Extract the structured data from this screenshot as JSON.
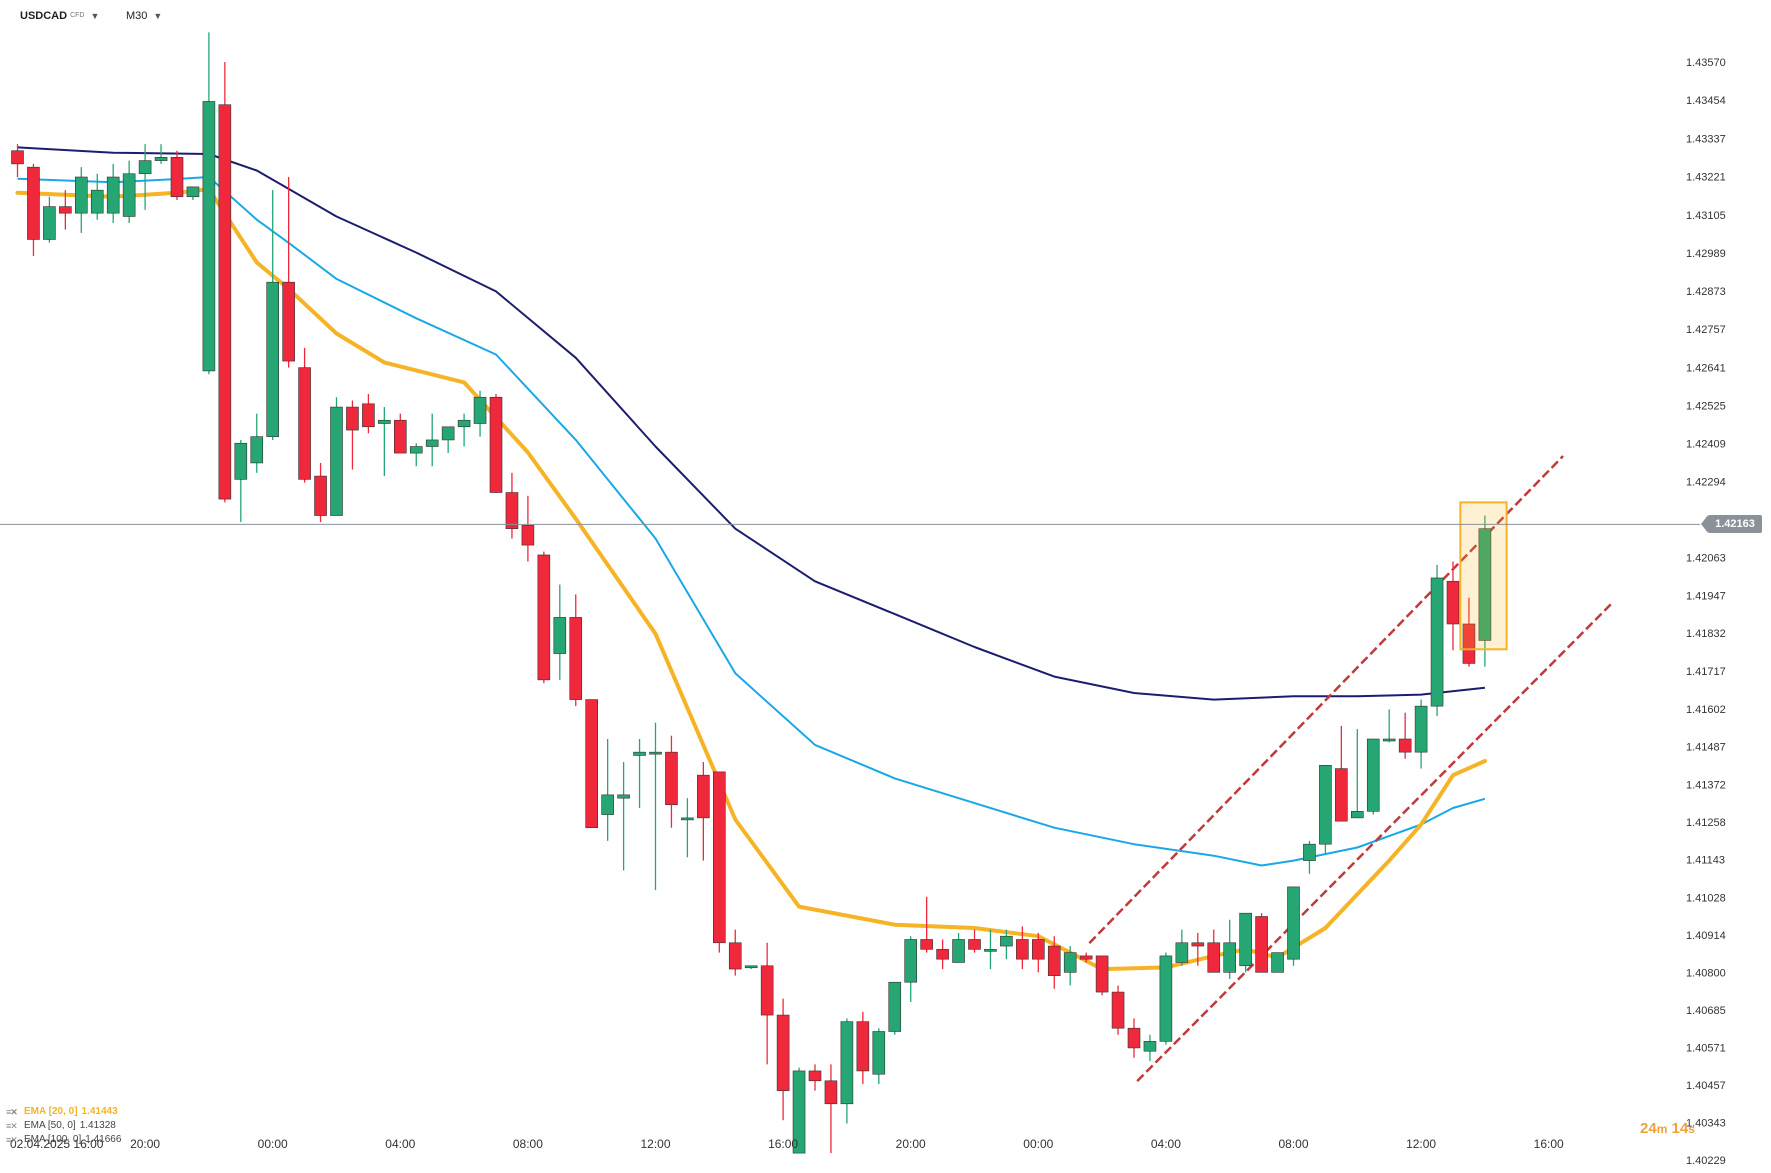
{
  "header": {
    "symbol": "USDCAD",
    "symbol_type": "CFD",
    "timeframe": "M30"
  },
  "current_price": "1.42163",
  "countdown": {
    "minutes": "24",
    "minutes_unit": "m",
    "seconds": "14",
    "seconds_unit": "s"
  },
  "legend": [
    {
      "label": "EMA [20, 0]",
      "value": "1.41443",
      "color": "#f5b325"
    },
    {
      "label": "EMA [50, 0]",
      "value": "1.41328",
      "color": "#444444"
    },
    {
      "label": "EMA [100, 0]",
      "value": "1.41666",
      "color": "#444444"
    }
  ],
  "colors": {
    "up": "#26a672",
    "down": "#f0283c",
    "ema20": "#f5b325",
    "ema50": "#1aa7e8",
    "ema100": "#1b1d6e",
    "channel": "#c0393b",
    "price_line": "#8a9199",
    "highlight": "#f5b325"
  },
  "chart_data": {
    "type": "candlestick",
    "title": "",
    "interval": "M30",
    "x_ticks": [
      "02.04.2025  16:00",
      "20:00",
      "00:00",
      "04:00",
      "08:00",
      "12:00",
      "16:00",
      "20:00",
      "00:00",
      "04:00",
      "08:00",
      "12:00",
      "16:00"
    ],
    "y_ticks": [
      "1.43570",
      "1.43454",
      "1.43337",
      "1.43221",
      "1.43105",
      "1.42989",
      "1.42873",
      "1.42757",
      "1.42641",
      "1.42525",
      "1.42409",
      "1.42294",
      "1.42063",
      "1.41947",
      "1.41832",
      "1.41717",
      "1.41602",
      "1.41487",
      "1.41372",
      "1.41258",
      "1.41143",
      "1.41028",
      "1.40914",
      "1.40800",
      "1.40685",
      "1.40571",
      "1.40457",
      "1.40343",
      "1.40229"
    ],
    "ylim": [
      1.402,
      1.4362
    ],
    "candles_ohlc": [
      [
        1.433,
        1.4332,
        1.4322,
        1.4326
      ],
      [
        1.4325,
        1.4326,
        1.4298,
        1.4303
      ],
      [
        1.4303,
        1.4316,
        1.4302,
        1.4313
      ],
      [
        1.4313,
        1.4318,
        1.4306,
        1.4311
      ],
      [
        1.4311,
        1.4325,
        1.4305,
        1.4322
      ],
      [
        1.4311,
        1.4323,
        1.4309,
        1.4318
      ],
      [
        1.4311,
        1.4326,
        1.4308,
        1.4322
      ],
      [
        1.431,
        1.4327,
        1.4308,
        1.4323
      ],
      [
        1.4323,
        1.4332,
        1.4312,
        1.4327
      ],
      [
        1.4327,
        1.4332,
        1.4326,
        1.4328
      ],
      [
        1.4328,
        1.433,
        1.4315,
        1.4316
      ],
      [
        1.4316,
        1.4319,
        1.4315,
        1.4319
      ],
      [
        1.4263,
        1.4366,
        1.4262,
        1.4345
      ],
      [
        1.4344,
        1.4357,
        1.4223,
        1.4224
      ],
      [
        1.423,
        1.4242,
        1.4217,
        1.4241
      ],
      [
        1.4235,
        1.425,
        1.4232,
        1.4243
      ],
      [
        1.4243,
        1.4318,
        1.4242,
        1.429
      ],
      [
        1.429,
        1.4322,
        1.4264,
        1.4266
      ],
      [
        1.4264,
        1.427,
        1.4229,
        1.423
      ],
      [
        1.4231,
        1.4235,
        1.4217,
        1.4219
      ],
      [
        1.4219,
        1.4255,
        1.4219,
        1.4252
      ],
      [
        1.4252,
        1.4254,
        1.4233,
        1.4245
      ],
      [
        1.4253,
        1.4256,
        1.4244,
        1.4246
      ],
      [
        1.4247,
        1.4252,
        1.4231,
        1.4248
      ],
      [
        1.4248,
        1.425,
        1.4238,
        1.4238
      ],
      [
        1.4238,
        1.4241,
        1.4234,
        1.424
      ],
      [
        1.424,
        1.425,
        1.4234,
        1.4242
      ],
      [
        1.4242,
        1.4246,
        1.4238,
        1.4246
      ],
      [
        1.4246,
        1.425,
        1.424,
        1.4248
      ],
      [
        1.4247,
        1.4257,
        1.4243,
        1.4255
      ],
      [
        1.4255,
        1.4256,
        1.4226,
        1.4226
      ],
      [
        1.4226,
        1.4232,
        1.4212,
        1.4215
      ],
      [
        1.4216,
        1.4225,
        1.4205,
        1.421
      ],
      [
        1.4207,
        1.4208,
        1.4168,
        1.4169
      ],
      [
        1.4177,
        1.4198,
        1.4169,
        1.4188
      ],
      [
        1.4188,
        1.4195,
        1.4161,
        1.4163
      ],
      [
        1.4163,
        1.4163,
        1.4124,
        1.4124
      ],
      [
        1.4128,
        1.4151,
        1.412,
        1.4134
      ],
      [
        1.4133,
        1.4144,
        1.4111,
        1.4134
      ],
      [
        1.4146,
        1.4151,
        1.413,
        1.4147
      ],
      [
        1.4147,
        1.4156,
        1.4105,
        1.4147
      ],
      [
        1.4147,
        1.4152,
        1.4124,
        1.4131
      ],
      [
        1.4127,
        1.4133,
        1.4115,
        1.4127
      ],
      [
        1.414,
        1.4144,
        1.4114,
        1.4127
      ],
      [
        1.4141,
        1.4141,
        1.4086,
        1.4089
      ],
      [
        1.4089,
        1.4093,
        1.4079,
        1.4081
      ],
      [
        1.4082,
        1.4082,
        1.4081,
        1.4082
      ],
      [
        1.4082,
        1.4089,
        1.4052,
        1.4067
      ],
      [
        1.4067,
        1.4072,
        1.4035,
        1.4044
      ],
      [
        1.4025,
        1.4051,
        1.4025,
        1.405
      ],
      [
        1.405,
        1.4052,
        1.4044,
        1.4047
      ],
      [
        1.4047,
        1.4052,
        1.4025,
        1.404
      ],
      [
        1.404,
        1.4066,
        1.4034,
        1.4065
      ],
      [
        1.4065,
        1.4068,
        1.4046,
        1.405
      ],
      [
        1.4049,
        1.4063,
        1.4046,
        1.4062
      ],
      [
        1.4062,
        1.4077,
        1.4061,
        1.4077
      ],
      [
        1.4077,
        1.4091,
        1.4071,
        1.409
      ],
      [
        1.409,
        1.4103,
        1.4086,
        1.4087
      ],
      [
        1.4087,
        1.409,
        1.4081,
        1.4084
      ],
      [
        1.4083,
        1.4092,
        1.4083,
        1.409
      ],
      [
        1.409,
        1.4093,
        1.4086,
        1.4087
      ],
      [
        1.4087,
        1.4093,
        1.4081,
        1.4087
      ],
      [
        1.4088,
        1.4093,
        1.4084,
        1.4091
      ],
      [
        1.409,
        1.4094,
        1.4081,
        1.4084
      ],
      [
        1.409,
        1.4092,
        1.408,
        1.4084
      ],
      [
        1.4088,
        1.4091,
        1.4075,
        1.4079
      ],
      [
        1.408,
        1.4088,
        1.4076,
        1.4086
      ],
      [
        1.4085,
        1.4086,
        1.4083,
        1.4084
      ],
      [
        1.4085,
        1.4085,
        1.4073,
        1.4074
      ],
      [
        1.4074,
        1.4076,
        1.4061,
        1.4063
      ],
      [
        1.4063,
        1.4066,
        1.4054,
        1.4057
      ],
      [
        1.4056,
        1.4061,
        1.4053,
        1.4059
      ],
      [
        1.4059,
        1.4086,
        1.4058,
        1.4085
      ],
      [
        1.4083,
        1.4093,
        1.4082,
        1.4089
      ],
      [
        1.4089,
        1.4092,
        1.4082,
        1.4088
      ],
      [
        1.4089,
        1.4093,
        1.408,
        1.408
      ],
      [
        1.408,
        1.4096,
        1.4078,
        1.4089
      ],
      [
        1.4082,
        1.4098,
        1.408,
        1.4098
      ],
      [
        1.4097,
        1.4098,
        1.408,
        1.408
      ],
      [
        1.408,
        1.4086,
        1.408,
        1.4086
      ],
      [
        1.4084,
        1.4106,
        1.4082,
        1.4106
      ],
      [
        1.4114,
        1.412,
        1.411,
        1.4119
      ],
      [
        1.4119,
        1.4143,
        1.4116,
        1.4143
      ],
      [
        1.4142,
        1.4155,
        1.4126,
        1.4126
      ],
      [
        1.4127,
        1.4154,
        1.4127,
        1.4129
      ],
      [
        1.4129,
        1.4151,
        1.4128,
        1.4151
      ],
      [
        1.4151,
        1.416,
        1.415,
        1.4151
      ],
      [
        1.4151,
        1.4159,
        1.4145,
        1.4147
      ],
      [
        1.4147,
        1.4163,
        1.4142,
        1.4161
      ],
      [
        1.4161,
        1.4204,
        1.4158,
        1.42
      ],
      [
        1.4199,
        1.4205,
        1.4178,
        1.4186
      ],
      [
        1.4186,
        1.4194,
        1.4173,
        1.4174
      ],
      [
        1.4181,
        1.4219,
        1.4173,
        1.4215
      ]
    ],
    "ema20": [
      [
        0,
        1.43172
      ],
      [
        6,
        1.4316
      ],
      [
        10,
        1.43172
      ],
      [
        12,
        1.43183
      ],
      [
        15,
        1.4296
      ],
      [
        17,
        1.4288
      ],
      [
        20,
        1.42744
      ],
      [
        23,
        1.42656
      ],
      [
        28,
        1.42595
      ],
      [
        32,
        1.42382
      ],
      [
        35,
        1.4218
      ],
      [
        40,
        1.4183
      ],
      [
        45,
        1.41265
      ],
      [
        49,
        1.41
      ],
      [
        55,
        1.40945
      ],
      [
        60,
        1.40935
      ],
      [
        64,
        1.4091
      ],
      [
        68,
        1.4081
      ],
      [
        72,
        1.40815
      ],
      [
        75,
        1.4085
      ],
      [
        77,
        1.4087
      ],
      [
        79,
        1.40845
      ],
      [
        82,
        1.40935
      ],
      [
        86,
        1.4114
      ],
      [
        88,
        1.4125
      ],
      [
        90,
        1.414
      ],
      [
        92,
        1.41443
      ]
    ],
    "ema50": [
      [
        0,
        1.43215
      ],
      [
        6,
        1.43204
      ],
      [
        10,
        1.43214
      ],
      [
        12,
        1.4322
      ],
      [
        15,
        1.4309
      ],
      [
        17,
        1.4302
      ],
      [
        20,
        1.4291
      ],
      [
        25,
        1.4279
      ],
      [
        30,
        1.4268
      ],
      [
        35,
        1.4242
      ],
      [
        40,
        1.4212
      ],
      [
        45,
        1.4171
      ],
      [
        50,
        1.41492
      ],
      [
        55,
        1.4139
      ],
      [
        60,
        1.41315
      ],
      [
        65,
        1.4124
      ],
      [
        70,
        1.4119
      ],
      [
        75,
        1.41155
      ],
      [
        78,
        1.41125
      ],
      [
        80,
        1.4114
      ],
      [
        84,
        1.4118
      ],
      [
        88,
        1.4125
      ],
      [
        90,
        1.413
      ],
      [
        92,
        1.41328
      ]
    ],
    "ema100": [
      [
        0,
        1.4331
      ],
      [
        6,
        1.43294
      ],
      [
        12,
        1.4329
      ],
      [
        15,
        1.4324
      ],
      [
        20,
        1.431
      ],
      [
        25,
        1.4299
      ],
      [
        30,
        1.42872
      ],
      [
        35,
        1.4267
      ],
      [
        40,
        1.424
      ],
      [
        45,
        1.4215
      ],
      [
        50,
        1.4199
      ],
      [
        55,
        1.4189
      ],
      [
        60,
        1.4179
      ],
      [
        65,
        1.417
      ],
      [
        70,
        1.4165
      ],
      [
        75,
        1.4163
      ],
      [
        80,
        1.4164
      ],
      [
        84,
        1.4164
      ],
      [
        88,
        1.41645
      ],
      [
        92,
        1.41666
      ]
    ],
    "channel_upper": [
      [
        67.2,
        1.40889
      ],
      [
        96.9,
        1.42371
      ]
    ],
    "channel_lower": [
      [
        70.2,
        1.40469
      ],
      [
        100.0,
        1.41925
      ]
    ],
    "highlight_box": {
      "from": 90.9,
      "to": 93.8,
      "low": 1.41783,
      "high": 1.4223
    }
  }
}
